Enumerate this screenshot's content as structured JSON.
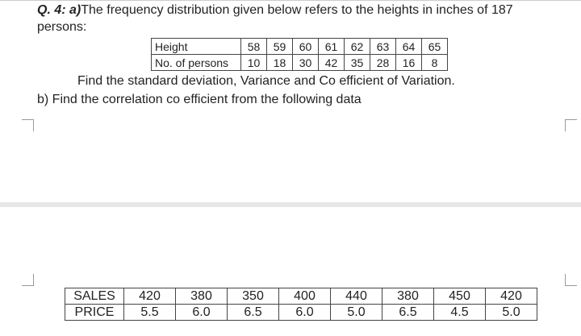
{
  "question": {
    "number": "Q. 4: a)",
    "text": "The frequency distribution given below refers to the heights in inches of 187 persons:"
  },
  "table1": {
    "rows": [
      [
        "Height",
        "58",
        "59",
        "60",
        "61",
        "62",
        "63",
        "64",
        "65"
      ],
      [
        "No. of persons",
        "10",
        "18",
        "30",
        "42",
        "35",
        "28",
        "16",
        "8"
      ]
    ]
  },
  "task_a": "Find the standard deviation, Variance and Co efficient of Variation.",
  "task_b": "b) Find the correlation co efficient from the following data",
  "table2": {
    "rows": [
      [
        "SALES",
        "420",
        "380",
        "350",
        "400",
        "440",
        "380",
        "450",
        "420"
      ],
      [
        "PRICE",
        "5.5",
        "6.0",
        "6.5",
        "6.0",
        "5.0",
        "6.5",
        "4.5",
        "5.0"
      ]
    ]
  }
}
